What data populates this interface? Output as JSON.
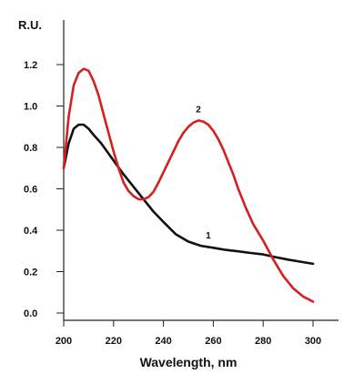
{
  "chart_data": {
    "type": "line",
    "ylabel": "R.U.",
    "xlabel": "Wavelength, nm",
    "xlim": [
      200,
      300
    ],
    "ylim": [
      0,
      1.2
    ],
    "x_ticks": [
      "200",
      "220",
      "240",
      "260",
      "280",
      "300"
    ],
    "y_ticks": [
      "0.0",
      "0.2",
      "0.4",
      "0.6",
      "0.8",
      "1.0",
      "1.2"
    ],
    "grid": false,
    "series": [
      {
        "name": "1",
        "color": "#111111",
        "x": [
          200,
          202,
          204,
          206,
          208,
          210,
          212,
          215,
          218,
          221,
          224,
          228,
          232,
          236,
          240,
          245,
          250,
          255,
          260,
          265,
          270,
          275,
          280,
          285,
          290,
          295,
          300
        ],
        "y": [
          0.7,
          0.82,
          0.89,
          0.91,
          0.91,
          0.89,
          0.86,
          0.82,
          0.77,
          0.72,
          0.67,
          0.61,
          0.55,
          0.49,
          0.44,
          0.38,
          0.345,
          0.325,
          0.315,
          0.305,
          0.298,
          0.29,
          0.283,
          0.27,
          0.258,
          0.248,
          0.238
        ]
      },
      {
        "name": "2",
        "color": "#d42020",
        "x": [
          200,
          202,
          204,
          206,
          208,
          210,
          212,
          214,
          216,
          218,
          220,
          222,
          224,
          226,
          228,
          230,
          232,
          234,
          236,
          238,
          240,
          242,
          244,
          246,
          248,
          250,
          252,
          254,
          256,
          258,
          260,
          262,
          264,
          266,
          268,
          270,
          273,
          276,
          280,
          284,
          288,
          292,
          296,
          300
        ],
        "y": [
          0.7,
          0.95,
          1.1,
          1.16,
          1.18,
          1.17,
          1.12,
          1.05,
          0.96,
          0.87,
          0.78,
          0.7,
          0.63,
          0.59,
          0.565,
          0.55,
          0.55,
          0.56,
          0.585,
          0.63,
          0.68,
          0.73,
          0.78,
          0.83,
          0.87,
          0.9,
          0.92,
          0.93,
          0.925,
          0.91,
          0.88,
          0.84,
          0.79,
          0.73,
          0.67,
          0.6,
          0.51,
          0.43,
          0.35,
          0.26,
          0.18,
          0.12,
          0.08,
          0.055
        ]
      }
    ],
    "labels": [
      {
        "text": "1",
        "x": 257,
        "y": 0.36
      },
      {
        "text": "2",
        "x": 253,
        "y": 0.97
      }
    ]
  }
}
